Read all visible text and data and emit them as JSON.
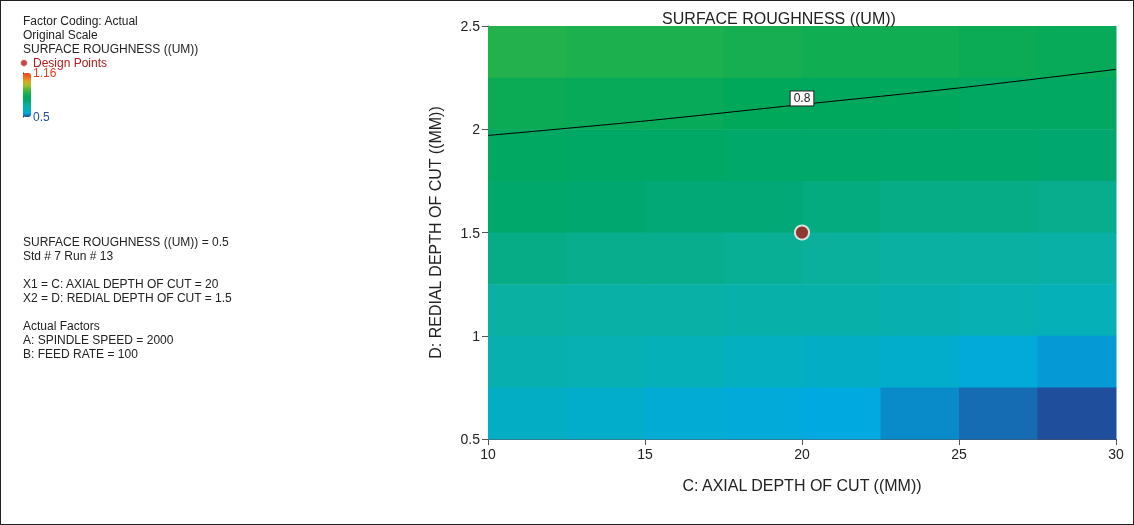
{
  "chart_data": {
    "type": "heatmap",
    "title": "SURFACE ROUGHNESS ((UM))",
    "xlabel": "C: AXIAL DEPTH OF CUT ((MM))",
    "ylabel": "D: REDIAL DEPTH OF CUT ((MM))",
    "xlim": [
      10,
      30
    ],
    "xticks": [
      10,
      15,
      20,
      25,
      30
    ],
    "ylim": [
      0.5,
      2.5
    ],
    "yticks": [
      0.5,
      1,
      1.5,
      2,
      2.5
    ],
    "clim": [
      0.5,
      1.16
    ],
    "cticks": [
      0.5,
      1.16
    ],
    "cells": [
      [
        0.86,
        0.85,
        0.85,
        0.84,
        0.83,
        0.83,
        0.82,
        0.81
      ],
      [
        0.82,
        0.81,
        0.81,
        0.8,
        0.79,
        0.79,
        0.78,
        0.78
      ],
      [
        0.78,
        0.77,
        0.77,
        0.76,
        0.76,
        0.75,
        0.75,
        0.74
      ],
      [
        0.75,
        0.74,
        0.73,
        0.73,
        0.72,
        0.71,
        0.71,
        0.7
      ],
      [
        0.71,
        0.7,
        0.7,
        0.69,
        0.68,
        0.67,
        0.67,
        0.66
      ],
      [
        0.67,
        0.66,
        0.66,
        0.65,
        0.65,
        0.64,
        0.63,
        0.62
      ],
      [
        0.64,
        0.63,
        0.62,
        0.61,
        0.6,
        0.59,
        0.57,
        0.55
      ],
      [
        0.6,
        0.59,
        0.58,
        0.57,
        0.56,
        0.54,
        0.52,
        0.5
      ]
    ],
    "series": [
      {
        "type": "line",
        "color": "#000000",
        "x": [
          10,
          15,
          20,
          25,
          30
        ],
        "values": [
          1.97,
          2.04,
          2.12,
          2.2,
          2.29
        ]
      },
      {
        "type": "scatter",
        "name": "Design Points",
        "color": "#b01c1c",
        "x": [
          20
        ],
        "values": [
          1.5
        ],
        "marker": "circle"
      }
    ],
    "legend": "top left",
    "annotations": [
      "Factor Coding: Actual",
      "Original Scale",
      "SURFACE ROUGHNESS ((UM))",
      "SURFACE ROUGHNESS ((UM)) = 0.5",
      "Std # 7 Run # 13",
      "X1 = C: AXIAL DEPTH OF CUT = 20",
      "X2 = D: REDIAL DEPTH OF CUT = 1.5",
      "Actual Factors",
      "A: SPINDLE SPEED = 2000",
      "B: FEED RATE = 100",
      {
        "text": "0.8",
        "x": 20,
        "y": 2.12
      }
    ]
  }
}
